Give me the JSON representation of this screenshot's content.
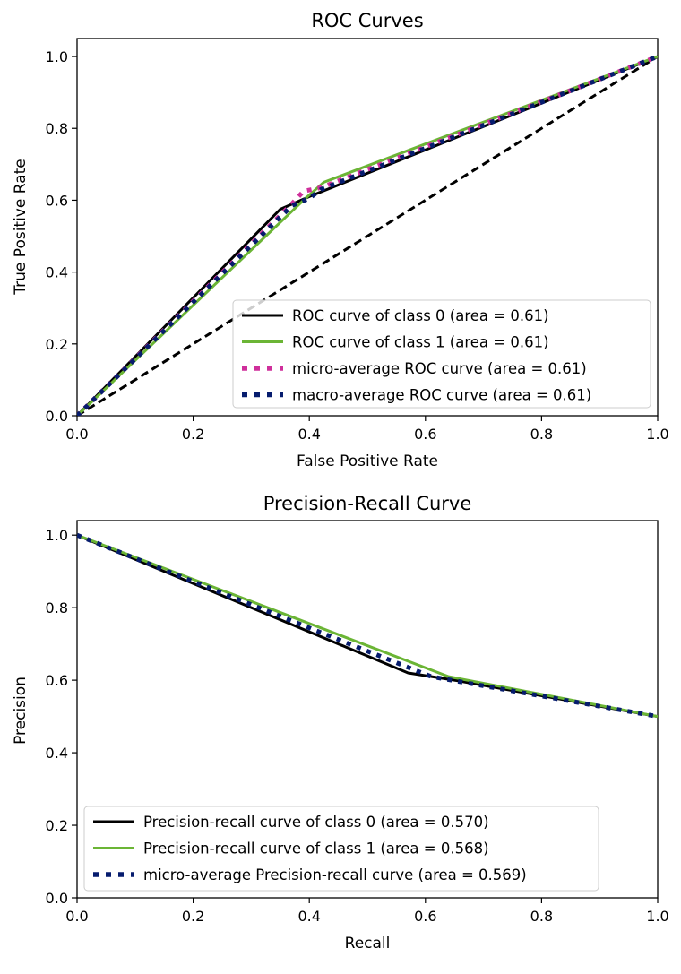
{
  "chart_data": [
    {
      "type": "line",
      "title": "ROC Curves",
      "xlabel": "False Positive Rate",
      "ylabel": "True Positive Rate",
      "xlim": [
        0,
        1
      ],
      "ylim": [
        0,
        1.05
      ],
      "xticks": [
        "0.0",
        "0.2",
        "0.4",
        "0.6",
        "0.8",
        "1.0"
      ],
      "yticks": [
        "0.0",
        "0.2",
        "0.4",
        "0.6",
        "0.8",
        "1.0"
      ],
      "legend_position": "lower right",
      "series": [
        {
          "name": "ROC curve of class 0 (area = 0.61)",
          "color": "#000000",
          "style": "solid",
          "x": [
            0,
            0.35,
            0.4,
            1
          ],
          "y": [
            0,
            0.575,
            0.61,
            1
          ]
        },
        {
          "name": "ROC curve of class 1 (area = 0.61)",
          "color": "#6bb535",
          "style": "solid",
          "x": [
            0,
            0.39,
            0.425,
            1
          ],
          "y": [
            0,
            0.6,
            0.65,
            1
          ]
        },
        {
          "name": "micro-average ROC curve (area = 0.61)",
          "color": "#cf2f9b",
          "style": "dotted",
          "x": [
            0,
            0.37,
            0.39,
            0.42,
            1
          ],
          "y": [
            0,
            0.59,
            0.625,
            0.635,
            1
          ]
        },
        {
          "name": "macro-average ROC curve (area = 0.61)",
          "color": "#061c6e",
          "style": "dotted",
          "x": [
            0,
            0.37,
            0.4,
            0.42,
            1
          ],
          "y": [
            0,
            0.585,
            0.605,
            0.63,
            1
          ]
        }
      ],
      "reference_line": {
        "x": [
          0,
          1
        ],
        "y": [
          0,
          1
        ],
        "color": "#000000",
        "style": "dashed"
      }
    },
    {
      "type": "line",
      "title": "Precision-Recall Curve",
      "xlabel": "Recall",
      "ylabel": "Precision",
      "xlim": [
        0,
        1
      ],
      "ylim": [
        0,
        1.04
      ],
      "xticks": [
        "0.0",
        "0.2",
        "0.4",
        "0.6",
        "0.8",
        "1.0"
      ],
      "yticks": [
        "0.0",
        "0.2",
        "0.4",
        "0.6",
        "0.8",
        "1.0"
      ],
      "legend_position": "lower left",
      "series": [
        {
          "name": "Precision-recall curve of class 0 (area = 0.570)",
          "color": "#000000",
          "style": "solid",
          "x": [
            0,
            0.57,
            0.65,
            1
          ],
          "y": [
            1,
            0.62,
            0.6,
            0.5
          ]
        },
        {
          "name": "Precision-recall curve of class 1 (area = 0.568)",
          "color": "#6bb535",
          "style": "solid",
          "x": [
            0,
            0.64,
            1
          ],
          "y": [
            1,
            0.61,
            0.5
          ]
        },
        {
          "name": "micro-average Precision-recall curve (area = 0.569)",
          "color": "#061c6e",
          "style": "dotted",
          "x": [
            0,
            0.61,
            1
          ],
          "y": [
            1,
            0.61,
            0.5
          ]
        }
      ]
    }
  ]
}
